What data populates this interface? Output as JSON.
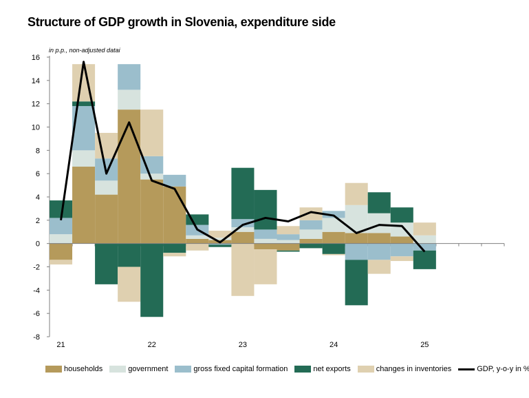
{
  "title": "Structure of GDP growth in Slovenia, expenditure side",
  "chart_data": {
    "type": "bar",
    "stacked": true,
    "unit_note": "in p.p., non-adjusted datai",
    "x_ticks": [
      "21",
      "22",
      "23",
      "24",
      "25"
    ],
    "x_tick_quarter_index": [
      0,
      4,
      8,
      12,
      16
    ],
    "quarters_count": 20,
    "ylim": [
      -8,
      16
    ],
    "y_ticks": [
      -8,
      -6,
      -4,
      -2,
      0,
      2,
      4,
      6,
      8,
      10,
      12,
      14,
      16
    ],
    "grid": false,
    "legend_position": "bottom",
    "series": [
      {
        "name": "households",
        "color": "#b59a5b",
        "values": [
          -1.4,
          6.6,
          4.2,
          11.5,
          5.5,
          4.9,
          0.4,
          0.3,
          1.0,
          -0.5,
          -0.6,
          0.4,
          1.0,
          0.9,
          0.9,
          0.6,
          0.0
        ]
      },
      {
        "name": "government",
        "color": "#d7e3de",
        "values": [
          0.8,
          1.4,
          1.2,
          1.7,
          0.5,
          0.0,
          0.3,
          0.2,
          0.4,
          0.4,
          0.3,
          0.8,
          1.2,
          2.4,
          1.7,
          1.2,
          0.7
        ]
      },
      {
        "name": "gross fixed capital formation",
        "color": "#9bbecc",
        "values": [
          1.4,
          3.8,
          1.9,
          2.2,
          1.5,
          1.0,
          0.9,
          -0.1,
          0.7,
          0.8,
          0.5,
          0.8,
          0.6,
          -1.4,
          -1.4,
          -1.1,
          -0.6
        ]
      },
      {
        "name": "net exports",
        "color": "#236b55",
        "values": [
          1.5,
          0.4,
          -3.5,
          -2.0,
          -6.3,
          -0.8,
          0.9,
          -0.2,
          4.4,
          3.4,
          -0.1,
          -0.4,
          -0.9,
          -3.9,
          1.8,
          1.3,
          -1.6
        ]
      },
      {
        "name": "changes in inventories",
        "color": "#dfd0b0",
        "values": [
          -0.4,
          3.2,
          2.2,
          -3.0,
          4.0,
          -0.3,
          -0.6,
          0.6,
          -4.5,
          -3.0,
          0.7,
          1.1,
          -0.1,
          1.9,
          -1.2,
          -0.4,
          1.1
        ]
      }
    ],
    "gdp_line": {
      "name": "GDP, y-o-y in %",
      "color": "#000000",
      "values": [
        2.0,
        15.6,
        6.0,
        10.4,
        5.4,
        4.7,
        1.2,
        0.1,
        1.6,
        2.2,
        1.9,
        2.7,
        2.4,
        0.9,
        1.6,
        1.5,
        -0.7
      ]
    }
  }
}
